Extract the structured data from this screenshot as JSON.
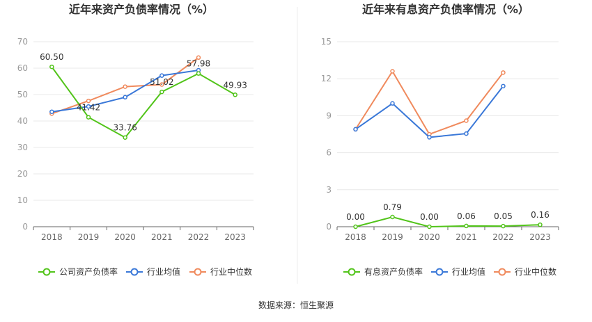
{
  "source_label": "数据来源：恒生聚源",
  "chart_data": [
    {
      "type": "line",
      "title": "近年来资产负债率情况（%）",
      "x": [
        "2018",
        "2019",
        "2020",
        "2021",
        "2022",
        "2023"
      ],
      "ylim": [
        0,
        70
      ],
      "yticks": [
        0,
        10,
        20,
        30,
        40,
        50,
        60,
        70
      ],
      "grid": true,
      "legend_position": "bottom",
      "series": [
        {
          "name": "公司资产负债率",
          "color": "#52c41a",
          "values": [
            60.5,
            41.42,
            33.76,
            51.02,
            57.98,
            49.93
          ],
          "labels": [
            "60.50",
            "41.42",
            "33.76",
            "51.02",
            "57.98",
            "49.93"
          ]
        },
        {
          "name": "行业均值",
          "color": "#3a78d8",
          "values": [
            43.5,
            45.5,
            49.0,
            57.2,
            59.2,
            null
          ]
        },
        {
          "name": "行业中位数",
          "color": "#f08a5d",
          "values": [
            42.8,
            47.6,
            53.0,
            53.8,
            64.0,
            null
          ]
        }
      ]
    },
    {
      "type": "line",
      "title": "近年来有息资产负债率情况（%）",
      "x": [
        "2018",
        "2019",
        "2020",
        "2021",
        "2022",
        "2023"
      ],
      "ylim": [
        0,
        15
      ],
      "yticks": [
        0,
        3,
        6,
        9,
        12,
        15
      ],
      "grid": true,
      "legend_position": "bottom",
      "series": [
        {
          "name": "有息资产负债率",
          "color": "#52c41a",
          "values": [
            0.0,
            0.79,
            0.0,
            0.06,
            0.05,
            0.16
          ],
          "labels": [
            "0.00",
            "0.79",
            "0.00",
            "0.06",
            "0.05",
            "0.16"
          ]
        },
        {
          "name": "行业均值",
          "color": "#3a78d8",
          "values": [
            7.9,
            10.0,
            7.25,
            7.55,
            11.4,
            null
          ]
        },
        {
          "name": "行业中位数",
          "color": "#f08a5d",
          "values": [
            7.9,
            12.6,
            7.5,
            8.6,
            12.5,
            null
          ]
        }
      ]
    }
  ]
}
